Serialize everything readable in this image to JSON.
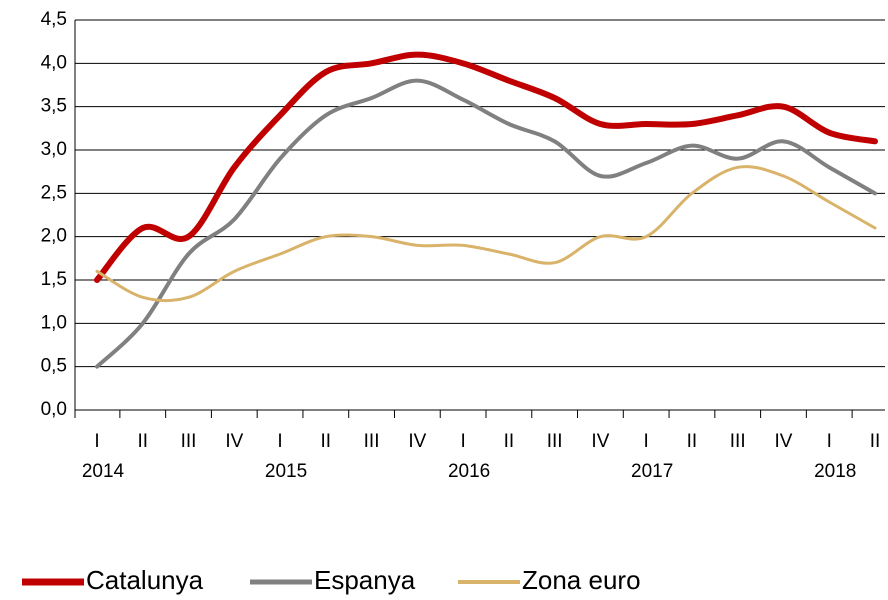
{
  "chart_data": {
    "type": "line",
    "categories": [
      "I",
      "II",
      "III",
      "IV",
      "I",
      "II",
      "III",
      "IV",
      "I",
      "II",
      "III",
      "IV",
      "I",
      "II",
      "III",
      "IV",
      "I",
      "II"
    ],
    "years": [
      "2014",
      "2015",
      "2016",
      "2017",
      "2018"
    ],
    "series": [
      {
        "name": "Catalunya",
        "color": "#c00000",
        "values": [
          1.5,
          2.1,
          2.0,
          2.8,
          3.4,
          3.9,
          4.0,
          4.1,
          4.0,
          3.8,
          3.6,
          3.3,
          3.3,
          3.3,
          3.4,
          3.5,
          3.2,
          3.1
        ]
      },
      {
        "name": "Espanya",
        "color": "#808080",
        "values": [
          0.5,
          1.0,
          1.8,
          2.2,
          2.9,
          3.4,
          3.6,
          3.8,
          3.58,
          3.3,
          3.1,
          2.7,
          2.85,
          3.05,
          2.9,
          3.1,
          2.8,
          2.5
        ]
      },
      {
        "name": "Zona euro",
        "color": "#d9b36a",
        "values": [
          1.6,
          1.3,
          1.3,
          1.6,
          1.8,
          2.0,
          2.0,
          1.9,
          1.9,
          1.8,
          1.7,
          2.0,
          2.0,
          2.5,
          2.8,
          2.7,
          2.4,
          2.1
        ]
      }
    ],
    "ylim": [
      0,
      4.5
    ],
    "yticks": [
      {
        "value": 0,
        "label": "0,0"
      },
      {
        "value": 0.5,
        "label": "0,5"
      },
      {
        "value": 1,
        "label": "1,0"
      },
      {
        "value": 1.5,
        "label": "1,5"
      },
      {
        "value": 2,
        "label": "2,0"
      },
      {
        "value": 2.5,
        "label": "2,5"
      },
      {
        "value": 3,
        "label": "3,0"
      },
      {
        "value": 3.5,
        "label": "3,5"
      },
      {
        "value": 4,
        "label": "4,0"
      },
      {
        "value": 4.5,
        "label": "4,5"
      }
    ],
    "grid": true
  }
}
